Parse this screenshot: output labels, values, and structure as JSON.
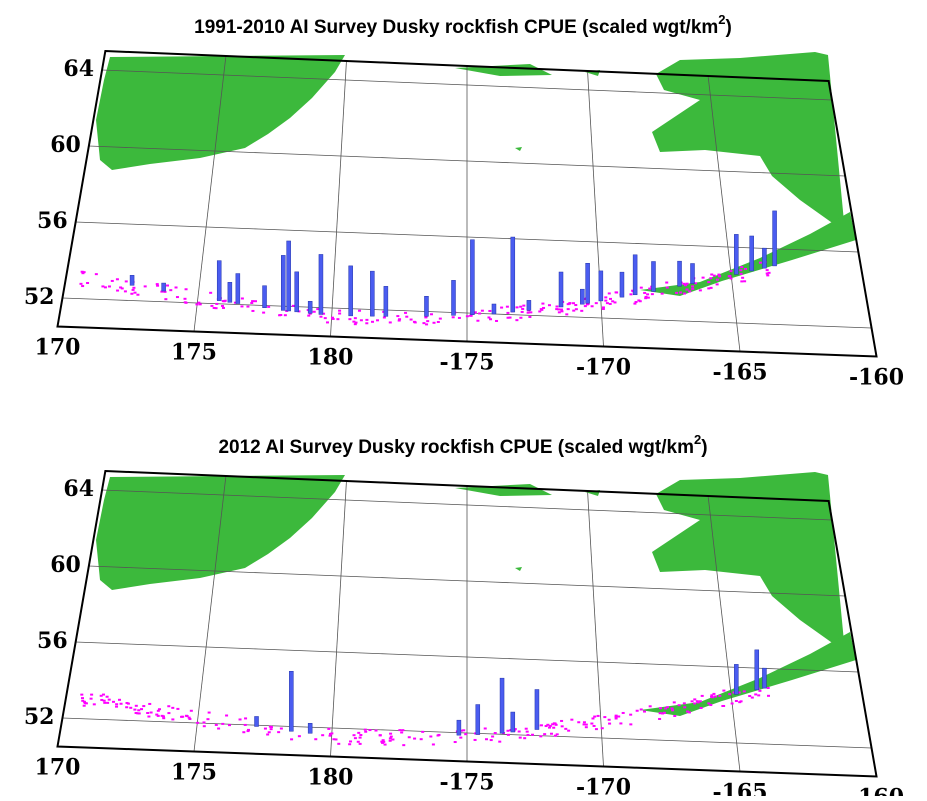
{
  "panels": [
    {
      "title": "1991-2010 AI Survey Dusky rockfish CPUE (scaled wgt/km",
      "title_sup": "2",
      "title_end": ")",
      "bars": {
        "lon": [
          172.5,
          173.7,
          175.8,
          176.2,
          176.5,
          177.5,
          178.2,
          178.4,
          178.7,
          179.2,
          179.6,
          180.7,
          181.5,
          182.0,
          183.5,
          184.5,
          185.2,
          186.0,
          186.7,
          187.3,
          188.5,
          189.3,
          189.5,
          190.0,
          190.8,
          191.3,
          192.0,
          193.0,
          193.5,
          195.2,
          195.8,
          196.3,
          196.7
        ],
        "cpue": [
          10,
          8,
          40,
          20,
          30,
          22,
          55,
          70,
          40,
          12,
          60,
          50,
          45,
          30,
          20,
          35,
          75,
          10,
          75,
          10,
          35,
          15,
          40,
          30,
          25,
          40,
          30,
          25,
          20,
          40,
          35,
          20,
          55
        ]
      }
    },
    {
      "title": "2012 AI Survey Dusky rockfish CPUE (scaled wgt/km",
      "title_sup": "2",
      "title_end": ")",
      "bars": {
        "lon": [
          177.2,
          178.5,
          179.2,
          184.7,
          185.4,
          186.3,
          186.7,
          187.6,
          195.2,
          196.0,
          196.3
        ],
        "cpue": [
          10,
          60,
          10,
          15,
          30,
          55,
          20,
          40,
          30,
          40,
          20
        ]
      }
    }
  ],
  "lat_labels": [
    64,
    60,
    56,
    52
  ],
  "lon_labels": [
    170,
    175,
    180,
    -175,
    -170,
    -165,
    -160
  ]
}
